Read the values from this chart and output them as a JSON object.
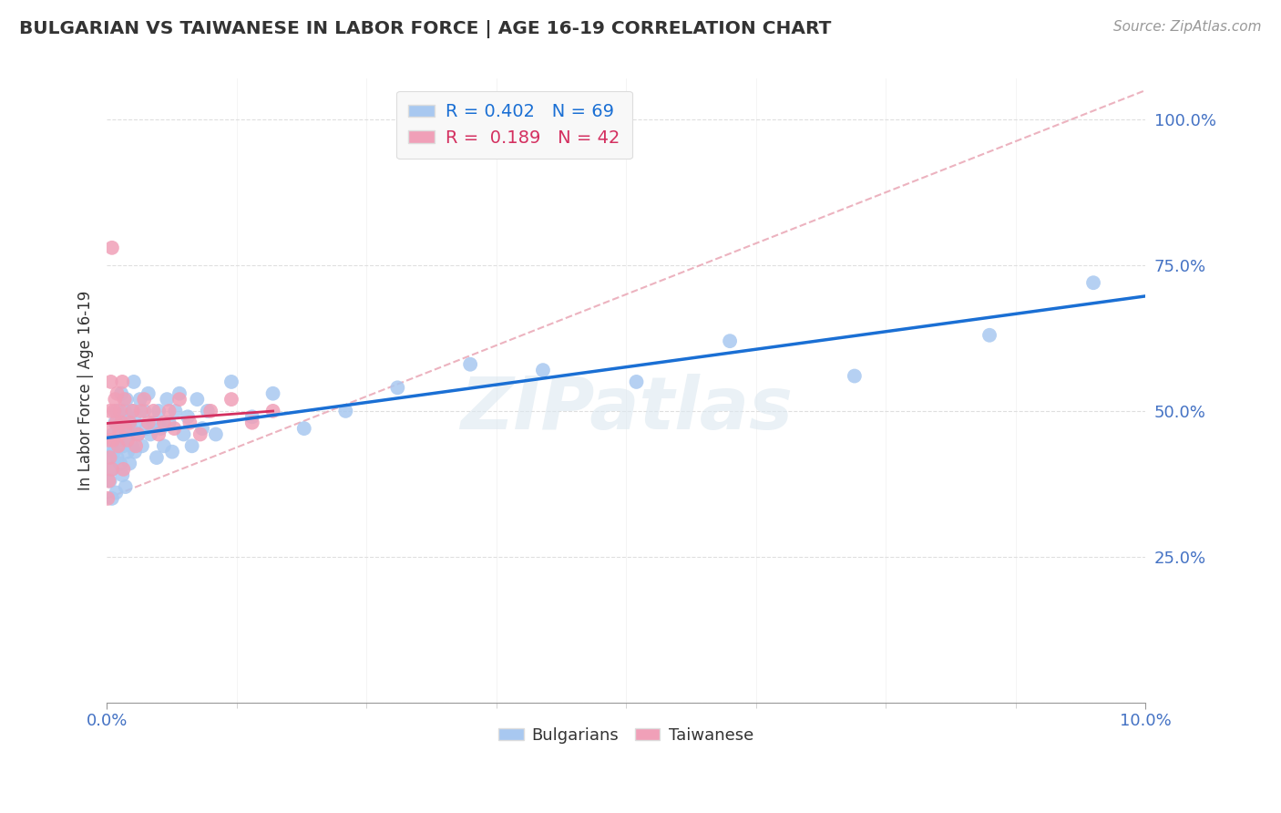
{
  "title": "BULGARIAN VS TAIWANESE IN LABOR FORCE | AGE 16-19 CORRELATION CHART",
  "source": "Source: ZipAtlas.com",
  "ylabel": "In Labor Force | Age 16-19",
  "xlim": [
    0.0,
    10.0
  ],
  "ylim": [
    0.0,
    107.0
  ],
  "r_bulgarian": 0.402,
  "n_bulgarian": 69,
  "r_taiwanese": 0.189,
  "n_taiwanese": 42,
  "bulgarian_color": "#a8c8f0",
  "taiwanese_color": "#f0a0b8",
  "trend_bulgarian_color": "#1a6fd4",
  "trend_taiwanese_color": "#d43060",
  "watermark": "ZIPatlas",
  "bg_color": "#ffffff",
  "legend_bg": "#f8f8f8",
  "tick_color": "#4472c4",
  "bulgarian_x": [
    0.02,
    0.03,
    0.04,
    0.05,
    0.05,
    0.06,
    0.07,
    0.08,
    0.09,
    0.1,
    0.1,
    0.11,
    0.12,
    0.13,
    0.14,
    0.15,
    0.15,
    0.16,
    0.17,
    0.18,
    0.18,
    0.19,
    0.2,
    0.2,
    0.21,
    0.22,
    0.23,
    0.24,
    0.25,
    0.26,
    0.27,
    0.28,
    0.3,
    0.32,
    0.34,
    0.36,
    0.38,
    0.4,
    0.42,
    0.45,
    0.48,
    0.5,
    0.52,
    0.55,
    0.58,
    0.6,
    0.63,
    0.66,
    0.7,
    0.74,
    0.78,
    0.82,
    0.87,
    0.92,
    0.97,
    1.05,
    1.2,
    1.4,
    1.6,
    1.9,
    2.3,
    2.8,
    3.5,
    4.2,
    5.1,
    6.0,
    7.2,
    8.5,
    9.5
  ],
  "bulgarian_y": [
    42,
    38,
    44,
    40,
    35,
    46,
    43,
    48,
    36,
    42,
    50,
    45,
    47,
    41,
    53,
    39,
    46,
    44,
    50,
    48,
    37,
    52,
    43,
    49,
    46,
    41,
    47,
    44,
    50,
    55,
    43,
    48,
    46,
    52,
    44,
    50,
    47,
    53,
    46,
    48,
    42,
    50,
    47,
    44,
    52,
    48,
    43,
    50,
    53,
    46,
    49,
    44,
    52,
    47,
    50,
    46,
    55,
    49,
    53,
    47,
    50,
    54,
    58,
    57,
    55,
    62,
    56,
    63,
    72
  ],
  "taiwanese_x": [
    0.01,
    0.02,
    0.02,
    0.03,
    0.03,
    0.04,
    0.04,
    0.05,
    0.06,
    0.07,
    0.08,
    0.09,
    0.1,
    0.11,
    0.12,
    0.13,
    0.14,
    0.15,
    0.16,
    0.17,
    0.18,
    0.2,
    0.22,
    0.25,
    0.28,
    0.3,
    0.33,
    0.36,
    0.4,
    0.45,
    0.5,
    0.55,
    0.6,
    0.65,
    0.7,
    0.8,
    0.9,
    1.0,
    1.2,
    1.4,
    1.6,
    0.05
  ],
  "taiwanese_y": [
    35,
    45,
    38,
    50,
    42,
    47,
    55,
    40,
    45,
    50,
    52,
    48,
    53,
    44,
    46,
    50,
    48,
    55,
    40,
    52,
    47,
    45,
    48,
    50,
    44,
    46,
    50,
    52,
    48,
    50,
    46,
    48,
    50,
    47,
    52,
    48,
    46,
    50,
    52,
    48,
    50,
    78
  ],
  "ref_line_x": [
    0.0,
    10.0
  ],
  "ref_line_y": [
    35.0,
    105.0
  ]
}
